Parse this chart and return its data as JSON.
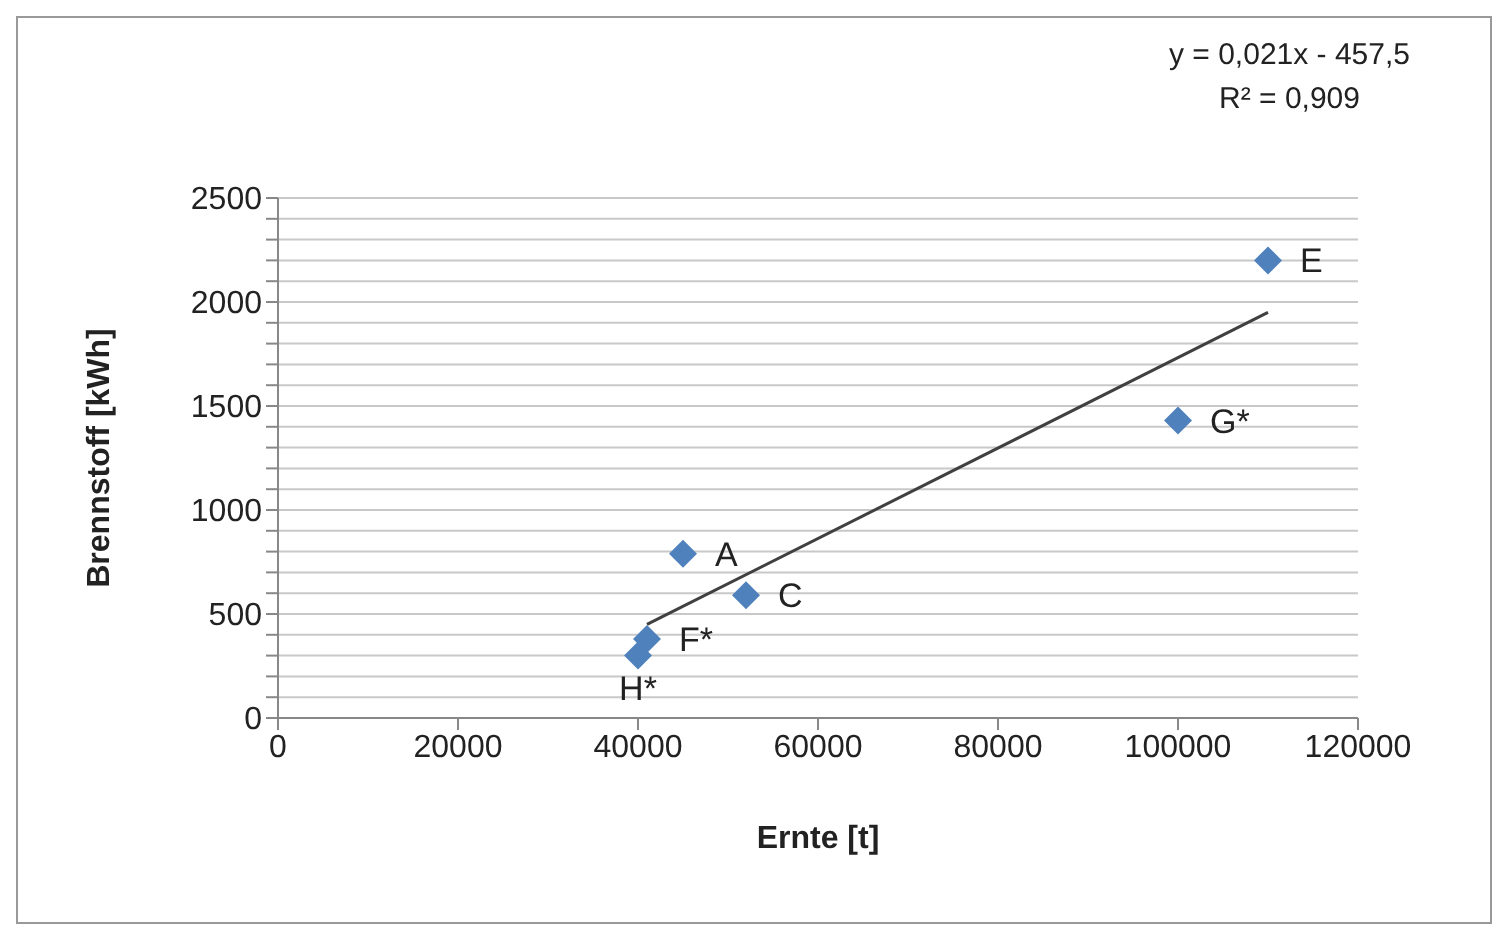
{
  "chart_data": {
    "type": "scatter",
    "xlabel": "Ernte [t]",
    "ylabel": "Brennstoff [kWh]",
    "marker": "diamond",
    "grid": "y",
    "xlim": [
      0,
      120000
    ],
    "xticks": [
      0,
      20000,
      40000,
      60000,
      80000,
      100000,
      120000
    ],
    "ylim": [
      0,
      2500
    ],
    "yticks": [
      0,
      {
        "value": 100,
        "label": null
      },
      {
        "value": 200,
        "label": null
      },
      {
        "value": 300,
        "label": null
      },
      {
        "value": 400,
        "label": null
      },
      500,
      {
        "value": 600,
        "label": null
      },
      {
        "value": 700,
        "label": null
      },
      {
        "value": 800,
        "label": null
      },
      {
        "value": 900,
        "label": null
      },
      1000,
      {
        "value": 1100,
        "label": null
      },
      {
        "value": 1200,
        "label": null
      },
      {
        "value": 1300,
        "label": null
      },
      {
        "value": 1400,
        "label": null
      },
      1500,
      {
        "value": 1600,
        "label": null
      },
      {
        "value": 1700,
        "label": null
      },
      {
        "value": 1800,
        "label": null
      },
      {
        "value": 1900,
        "label": null
      },
      2000,
      {
        "value": 2100,
        "label": null
      },
      {
        "value": 2200,
        "label": null
      },
      {
        "value": 2300,
        "label": null
      },
      {
        "value": 2400,
        "label": null
      },
      2500
    ],
    "series": [
      {
        "color": "#4f81bd",
        "x": [
          45000,
          52000,
          110000,
          41000,
          100000,
          40000
        ],
        "values": [
          790,
          590,
          2200,
          380,
          1430,
          300
        ]
      },
      {
        "type": "line",
        "color": "#404040",
        "marker": "none",
        "x": [
          41000,
          110000
        ],
        "values": [
          450,
          1950
        ]
      }
    ],
    "annotations": [
      "y = 0,021x - 457,5",
      "R² = 0,909",
      {
        "text": "A",
        "x": 45000,
        "y": 790
      },
      {
        "text": "C",
        "x": 52000,
        "y": 590
      },
      {
        "text": "E",
        "x": 110000,
        "y": 2200
      },
      {
        "text": "F*",
        "x": 41000,
        "y": 380
      },
      {
        "text": "G*",
        "x": 100000,
        "y": 1430
      },
      {
        "text": "H*",
        "x": 40000,
        "y": 300
      }
    ]
  }
}
